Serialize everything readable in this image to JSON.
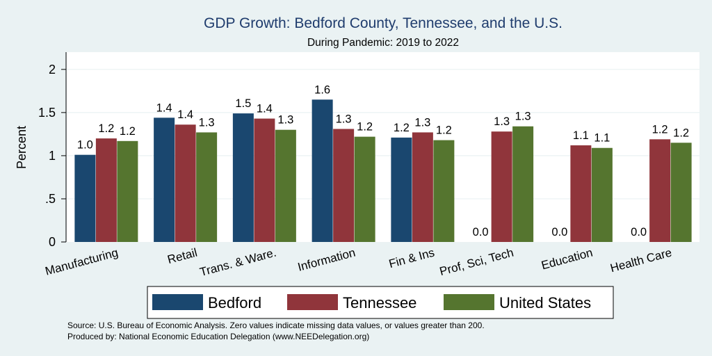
{
  "chart_data": {
    "type": "bar",
    "title": "GDP Growth: Bedford County, Tennessee, and the U.S.",
    "subtitle": "During Pandemic: 2019 to 2022",
    "ylabel": "Percent",
    "ylim": [
      0,
      2.2
    ],
    "yticks": [
      "0",
      ".5",
      "1",
      "1.5",
      "2"
    ],
    "yticks_values": [
      0,
      0.5,
      1,
      1.5,
      2
    ],
    "grid": true,
    "legend_position": "bottom",
    "categories": [
      "Manufacturing",
      "Retail",
      "Trans. & Ware.",
      "Information",
      "Fin & Ins",
      "Prof, Sci, Tech",
      "Education",
      "Health Care"
    ],
    "series": [
      {
        "name": "Bedford",
        "color": "#1a476f",
        "values": [
          1.01,
          1.44,
          1.49,
          1.65,
          1.21,
          0,
          0,
          0
        ],
        "labels": [
          "1.0",
          "1.4",
          "1.5",
          "1.6",
          "1.2",
          "0.0",
          "0.0",
          "0.0"
        ]
      },
      {
        "name": "Tennessee",
        "color": "#90353b",
        "values": [
          1.2,
          1.36,
          1.43,
          1.31,
          1.27,
          1.28,
          1.12,
          1.19
        ],
        "labels": [
          "1.2",
          "1.4",
          "1.4",
          "1.3",
          "1.3",
          "1.3",
          "1.1",
          "1.2"
        ]
      },
      {
        "name": "United States",
        "color": "#55752f",
        "values": [
          1.17,
          1.27,
          1.3,
          1.22,
          1.18,
          1.34,
          1.09,
          1.15
        ],
        "labels": [
          "1.2",
          "1.3",
          "1.3",
          "1.2",
          "1.2",
          "1.3",
          "1.1",
          "1.2"
        ]
      }
    ],
    "notes": [
      "Source: U.S. Bureau of Economic Analysis. Zero values indicate missing data values, or values greater than 200.",
      "Produced by: National Economic Education Delegation (www.NEEDelegation.org)"
    ]
  }
}
